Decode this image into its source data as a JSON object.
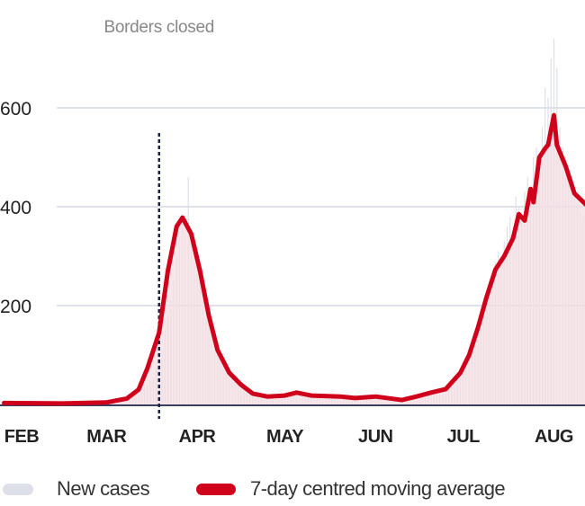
{
  "chart_data": {
    "type": "bar+line",
    "title": "",
    "xlabel": "",
    "ylabel": "",
    "ylim": [
      0,
      750
    ],
    "yticks": [
      200,
      400,
      600
    ],
    "ytick_labels": [
      "200",
      "400",
      "600"
    ],
    "grid": true,
    "x_start_date": "01-26",
    "month_ticks": [
      {
        "label": "FEB",
        "date": "02-01"
      },
      {
        "label": "MAR",
        "date": "03-01"
      },
      {
        "label": "APR",
        "date": "04-01"
      },
      {
        "label": "MAY",
        "date": "05-01"
      },
      {
        "label": "JUN",
        "date": "06-01"
      },
      {
        "label": "JUL",
        "date": "07-01"
      },
      {
        "label": "AUG",
        "date": "08-01"
      }
    ],
    "annotation": {
      "label": "Borders closed",
      "date": "03-19"
    },
    "colors": {
      "new_cases": "#dde0e8",
      "new_cases_fill": "#f3dde2",
      "average": "#d0021b",
      "grid": "#dfe1ea",
      "axis": "#3a3f5c",
      "marker": "#1c2340"
    },
    "series": [
      {
        "name": "New cases",
        "type": "bar",
        "daily_values": [
          0,
          0,
          1,
          0,
          0,
          1,
          0,
          1,
          0,
          0,
          2,
          0,
          0,
          1,
          0,
          0,
          0,
          1,
          0,
          0,
          0,
          0,
          1,
          0,
          0,
          0,
          2,
          0,
          0,
          1,
          0,
          0,
          1,
          0,
          3,
          2,
          3,
          5,
          4,
          6,
          8,
          10,
          12,
          9,
          15,
          18,
          20,
          27,
          35,
          40,
          48,
          55,
          70,
          95,
          110,
          150,
          180,
          210,
          250,
          300,
          340,
          380,
          350,
          460,
          330,
          300,
          320,
          280,
          250,
          210,
          190,
          150,
          130,
          110,
          95,
          80,
          70,
          60,
          55,
          45,
          40,
          38,
          30,
          28,
          25,
          20,
          18,
          20,
          15,
          14,
          12,
          16,
          10,
          12,
          14,
          15,
          20,
          18,
          22,
          25,
          28,
          24,
          20,
          18,
          15,
          14,
          16,
          18,
          15,
          12,
          14,
          16,
          18,
          15,
          14,
          16,
          12,
          10,
          14,
          18,
          20,
          12,
          10,
          11,
          13,
          15,
          17,
          18,
          14,
          12,
          16,
          10,
          8,
          9,
          11,
          8,
          7,
          6,
          9,
          12,
          10,
          14,
          16,
          18,
          20,
          22,
          24,
          26,
          28,
          30,
          32,
          35,
          38,
          45,
          50,
          55,
          60,
          70,
          85,
          95,
          110,
          130,
          160,
          180,
          200,
          230,
          250,
          270,
          290,
          310,
          280,
          330,
          360,
          380,
          350,
          420,
          400,
          380,
          430,
          460,
          440,
          500,
          520,
          480,
          560,
          640,
          620,
          700,
          740,
          680,
          560,
          520,
          500,
          470,
          460,
          440,
          410,
          390,
          380,
          360
        ]
      },
      {
        "name": "7-day centred moving average",
        "type": "line",
        "points": [
          {
            "date": "01-26",
            "value": 3
          },
          {
            "date": "02-15",
            "value": 2
          },
          {
            "date": "03-01",
            "value": 4
          },
          {
            "date": "03-08",
            "value": 12
          },
          {
            "date": "03-12",
            "value": 30
          },
          {
            "date": "03-15",
            "value": 73
          },
          {
            "date": "03-19",
            "value": 145
          },
          {
            "date": "03-22",
            "value": 270
          },
          {
            "date": "03-25",
            "value": 360
          },
          {
            "date": "03-27",
            "value": 378
          },
          {
            "date": "03-30",
            "value": 345
          },
          {
            "date": "04-02",
            "value": 270
          },
          {
            "date": "04-05",
            "value": 180
          },
          {
            "date": "04-08",
            "value": 110
          },
          {
            "date": "04-12",
            "value": 64
          },
          {
            "date": "04-16",
            "value": 40
          },
          {
            "date": "04-20",
            "value": 22
          },
          {
            "date": "04-25",
            "value": 16
          },
          {
            "date": "05-01",
            "value": 18
          },
          {
            "date": "05-05",
            "value": 24
          },
          {
            "date": "05-10",
            "value": 18
          },
          {
            "date": "05-20",
            "value": 16
          },
          {
            "date": "05-25",
            "value": 13
          },
          {
            "date": "06-01",
            "value": 16
          },
          {
            "date": "06-10",
            "value": 9
          },
          {
            "date": "06-15",
            "value": 16
          },
          {
            "date": "06-20",
            "value": 24
          },
          {
            "date": "06-25",
            "value": 31
          },
          {
            "date": "06-30",
            "value": 64
          },
          {
            "date": "07-03",
            "value": 100
          },
          {
            "date": "07-06",
            "value": 155
          },
          {
            "date": "07-09",
            "value": 218
          },
          {
            "date": "07-12",
            "value": 273
          },
          {
            "date": "07-15",
            "value": 300
          },
          {
            "date": "07-18",
            "value": 336
          },
          {
            "date": "07-20",
            "value": 385
          },
          {
            "date": "07-22",
            "value": 372
          },
          {
            "date": "07-24",
            "value": 436
          },
          {
            "date": "07-25",
            "value": 409
          },
          {
            "date": "07-27",
            "value": 500
          },
          {
            "date": "07-29",
            "value": 518
          },
          {
            "date": "07-30",
            "value": 525
          },
          {
            "date": "08-01",
            "value": 585
          },
          {
            "date": "08-02",
            "value": 525
          },
          {
            "date": "08-05",
            "value": 482
          },
          {
            "date": "08-08",
            "value": 427
          },
          {
            "date": "08-12",
            "value": 404
          }
        ]
      }
    ],
    "legend": {
      "position": "bottom-left",
      "items": [
        "New cases",
        "7-day centred moving average"
      ]
    }
  }
}
